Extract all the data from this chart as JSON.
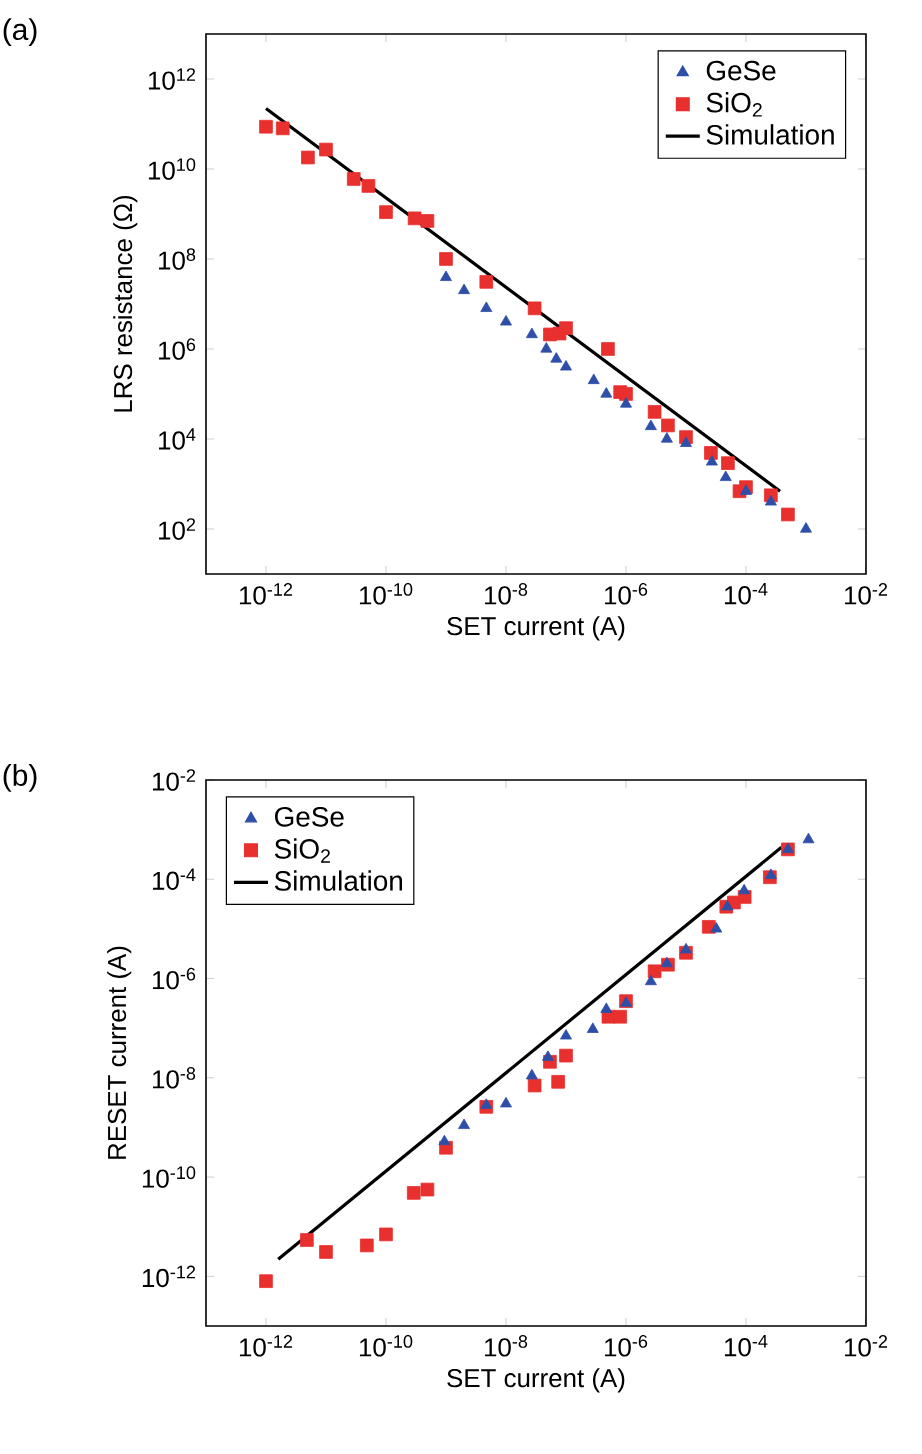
{
  "chart_data": [
    {
      "type": "scatter",
      "annotations": [
        "(a)"
      ],
      "xlabel": "SET current (A)",
      "ylabel": "LRS resistance (Ω)",
      "log": "xy",
      "legend": "top right",
      "xlim": [
        1e-13,
        0.01
      ],
      "ylim": [
        10.0,
        10000000000000.0
      ],
      "xticks": [
        {
          "value": 1e-12,
          "label": "10$^{-12}$"
        },
        {
          "value": 1e-10,
          "label": "10$^{-10}$"
        },
        {
          "value": 1e-08,
          "label": "10$^{-8}$"
        },
        {
          "value": 1e-06,
          "label": "10$^{-6}$"
        },
        {
          "value": 0.0001,
          "label": "10$^{-4}$"
        },
        {
          "value": 0.01,
          "label": "10$^{-2}$"
        }
      ],
      "yticks": [
        {
          "value": 100.0,
          "label": "10$^{2}$"
        },
        {
          "value": 10000.0,
          "label": "10$^{4}$"
        },
        {
          "value": 1000000.0,
          "label": "10$^{6}$"
        },
        {
          "value": 100000000.0,
          "label": "10$^{8}$"
        },
        {
          "value": 10000000000.0,
          "label": "10$^{10}$"
        },
        {
          "value": 1000000000000.0,
          "label": "10$^{12}$"
        }
      ],
      "series": [
        {
          "name": "GeSe",
          "marker": "triangle",
          "color": "#2e4fa8",
          "x": [
            1e-09,
            2e-09,
            4.7e-09,
            1e-08,
            2.7e-08,
            4.7e-08,
            6.9e-08,
            1e-07,
            2.9e-07,
            4.7e-07,
            1e-06,
            2.6e-06,
            4.8e-06,
            1e-05,
            2.7e-05,
            4.6e-05,
            0.0001,
            0.00026,
            0.001
          ],
          "values": [
            39000000.0,
            20000000.0,
            8000000.0,
            4000000.0,
            2100000.0,
            1000000.0,
            600000.0,
            400000.0,
            200000.0,
            100000.0,
            60000.0,
            19000.0,
            10000.0,
            8000.0,
            3100.0,
            1400.0,
            690,
            400,
            100
          ]
        },
        {
          "name": "SiO$_{2}$",
          "marker": "square",
          "color": "#e8302e",
          "x": [
            1e-12,
            1.9e-12,
            5e-12,
            1e-11,
            2.9e-11,
            5.1e-11,
            1e-10,
            3e-10,
            4.9e-10,
            1e-09,
            4.7e-09,
            3e-08,
            5.4e-08,
            7.8e-08,
            1e-07,
            5e-07,
            8e-07,
            1e-06,
            3e-06,
            5e-06,
            1e-05,
            2.6e-05,
            5e-05,
            7.8e-05,
            0.0001,
            0.00026,
            0.0005
          ],
          "values": [
            87000000000.0,
            80000000000.0,
            18000000000.0,
            27000000000.0,
            6000000000.0,
            4200000000.0,
            1100000000.0,
            800000000.0,
            700000000.0,
            100000000.0,
            31000000.0,
            8000000.0,
            2100000.0,
            2200000.0,
            2900000.0,
            1000000.0,
            110000.0,
            100000.0,
            40000.0,
            20000.0,
            11000.0,
            4900.0,
            2900.0,
            690,
            850,
            560,
            210
          ]
        },
        {
          "name": "Simulation",
          "type": "line",
          "marker": "none",
          "color": "#000000",
          "x": [
            1e-12,
            0.00037
          ],
          "values": [
            220000000000.0,
            690
          ]
        }
      ]
    },
    {
      "type": "scatter",
      "annotations": [
        "(b)"
      ],
      "xlabel": "SET current (A)",
      "ylabel": "RESET current  (A)",
      "log": "xy",
      "legend": "top left",
      "xlim": [
        1e-13,
        0.01
      ],
      "ylim": [
        1e-13,
        0.01
      ],
      "xticks": [
        {
          "value": 1e-12,
          "label": "10$^{-12}$"
        },
        {
          "value": 1e-10,
          "label": "10$^{-10}$"
        },
        {
          "value": 1e-08,
          "label": "10$^{-8}$"
        },
        {
          "value": 1e-06,
          "label": "10$^{-6}$"
        },
        {
          "value": 0.0001,
          "label": "10$^{-4}$"
        },
        {
          "value": 0.01,
          "label": "10$^{-2}$"
        }
      ],
      "yticks": [
        {
          "value": 1e-12,
          "label": "10$^{-12}$"
        },
        {
          "value": 1e-10,
          "label": "10$^{-10}$"
        },
        {
          "value": 1e-08,
          "label": "10$^{-8}$"
        },
        {
          "value": 1e-06,
          "label": "10$^{-6}$"
        },
        {
          "value": 0.0001,
          "label": "10$^{-4}$"
        },
        {
          "value": 0.01,
          "label": "10$^{-2}$"
        }
      ],
      "series": [
        {
          "name": "GeSe",
          "marker": "triangle",
          "color": "#2e4fa8",
          "x": [
            9.4e-10,
            2e-09,
            4.7e-09,
            1e-08,
            2.7e-08,
            5e-08,
            1e-07,
            2.8e-07,
            4.7e-07,
            1e-06,
            2.6e-06,
            4.8e-06,
            1e-05,
            3.2e-05,
            4.9e-05,
            9.3e-05,
            0.00026,
            0.0005,
            0.0011
          ],
          "values": [
            5.2e-10,
            1.1e-09,
            2.8e-09,
            3e-09,
            1.1e-08,
            2.6e-08,
            7e-08,
            9.5e-08,
            2.4e-07,
            3.2e-07,
            8.7e-07,
            2e-06,
            3.8e-06,
            1e-05,
            2.8e-05,
            5.9e-05,
            0.00012,
            0.0004,
            0.00063
          ]
        },
        {
          "name": "SiO$_{2}$",
          "marker": "square",
          "color": "#e8302e",
          "x": [
            1e-12,
            4.8e-12,
            1e-11,
            4.8e-11,
            1e-10,
            2.9e-10,
            4.9e-10,
            1e-09,
            4.7e-09,
            3e-08,
            5.4e-08,
            7.4e-08,
            1e-07,
            5.1e-07,
            8e-07,
            1e-06,
            3e-06,
            5e-06,
            1e-05,
            2.4e-05,
            4.7e-05,
            6.3e-05,
            9.5e-05,
            0.00025,
            0.0005
          ],
          "values": [
            8e-13,
            5.4e-12,
            3.1e-12,
            4.2e-12,
            7e-12,
            4.8e-11,
            5.6e-11,
            3.9e-10,
            2.6e-09,
            7e-09,
            2.1e-08,
            8.3e-09,
            2.8e-08,
            1.7e-07,
            1.7e-07,
            3.5e-07,
            1.4e-06,
            1.9e-06,
            3.3e-06,
            1.1e-05,
            2.8e-05,
            3.4e-05,
            4.4e-05,
            0.00011,
            0.0004
          ]
        },
        {
          "name": "Simulation",
          "type": "line",
          "marker": "none",
          "color": "#000000",
          "x": [
            1.6e-12,
            0.00039
          ],
          "values": [
            2.2e-12,
            0.00044
          ]
        }
      ]
    }
  ]
}
